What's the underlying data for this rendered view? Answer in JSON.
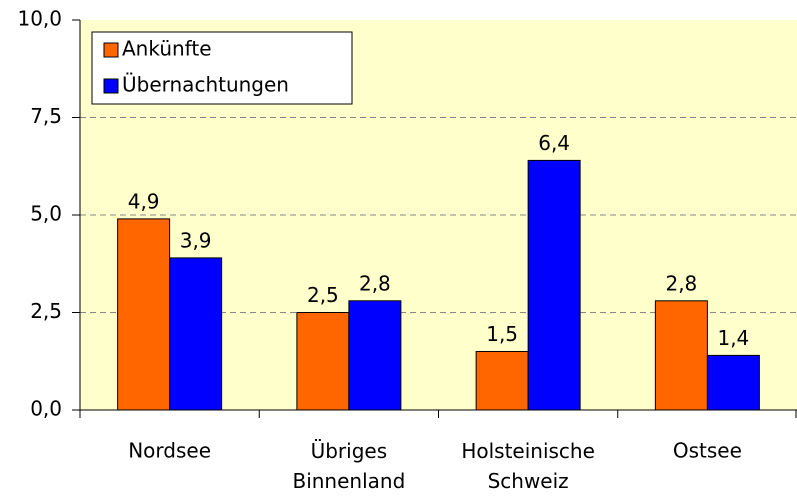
{
  "chart_data": {
    "type": "bar",
    "categories": [
      "Nordsee",
      "Übriges Binnenland",
      "Holsteinische Schweiz",
      "Ostsee"
    ],
    "series": [
      {
        "name": "Ankünfte",
        "color": "#ff6600",
        "values": [
          4.9,
          2.5,
          1.5,
          2.8
        ],
        "value_labels": [
          "4,9",
          "2,5",
          "1,5",
          "2,8"
        ]
      },
      {
        "name": "Übernachtungen",
        "color": "#0000ff",
        "values": [
          3.9,
          2.8,
          6.4,
          1.4
        ],
        "value_labels": [
          "3,9",
          "2,8",
          "6,4",
          "1,4"
        ]
      }
    ],
    "ylim": [
      0,
      10
    ],
    "yticks": [
      {
        "value": 0,
        "label": "0,0"
      },
      {
        "value": 2.5,
        "label": "2,5"
      },
      {
        "value": 5,
        "label": "5,0"
      },
      {
        "value": 7.5,
        "label": "7,5"
      },
      {
        "value": 10,
        "label": "10,0"
      }
    ],
    "grid": true,
    "legend": "upper left",
    "background": "#ffffcc"
  }
}
